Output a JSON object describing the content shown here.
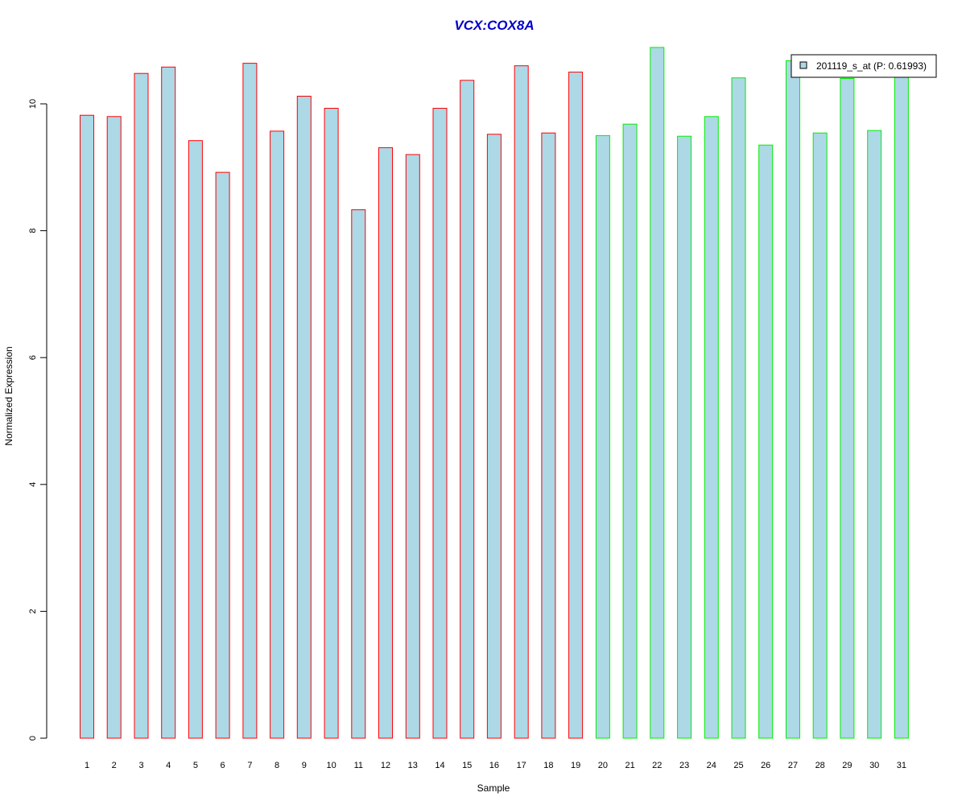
{
  "chart_data": {
    "type": "bar",
    "title": "VCX:COX8A",
    "xlabel": "Sample",
    "ylabel": "Normalized Expression",
    "categories": [
      "1",
      "2",
      "3",
      "4",
      "5",
      "6",
      "7",
      "8",
      "9",
      "10",
      "11",
      "12",
      "13",
      "14",
      "15",
      "16",
      "17",
      "18",
      "19",
      "20",
      "21",
      "22",
      "23",
      "24",
      "25",
      "26",
      "27",
      "28",
      "29",
      "30",
      "31"
    ],
    "series": [
      {
        "name": "201119_s_at (P: 0.61993)",
        "values": [
          9.82,
          9.8,
          10.48,
          10.58,
          9.42,
          8.92,
          10.64,
          9.57,
          10.12,
          9.93,
          8.33,
          9.31,
          9.2,
          9.93,
          10.37,
          9.52,
          10.6,
          9.54,
          10.5,
          9.5,
          9.68,
          10.89,
          9.49,
          9.8,
          10.41,
          9.35,
          10.68,
          9.54,
          10.4,
          9.58,
          10.47
        ]
      }
    ],
    "group_sizes": [
      19,
      12
    ],
    "ylim": [
      0,
      11
    ],
    "yticks": [
      0,
      2,
      4,
      6,
      8,
      10
    ],
    "legend_position": "top-right",
    "grid": false,
    "colors": {
      "title": "#0000cc",
      "bar_fill": "#add8e6",
      "group1_border": "#ff0000",
      "group2_border": "#00ee00",
      "axis": "#000000"
    }
  }
}
